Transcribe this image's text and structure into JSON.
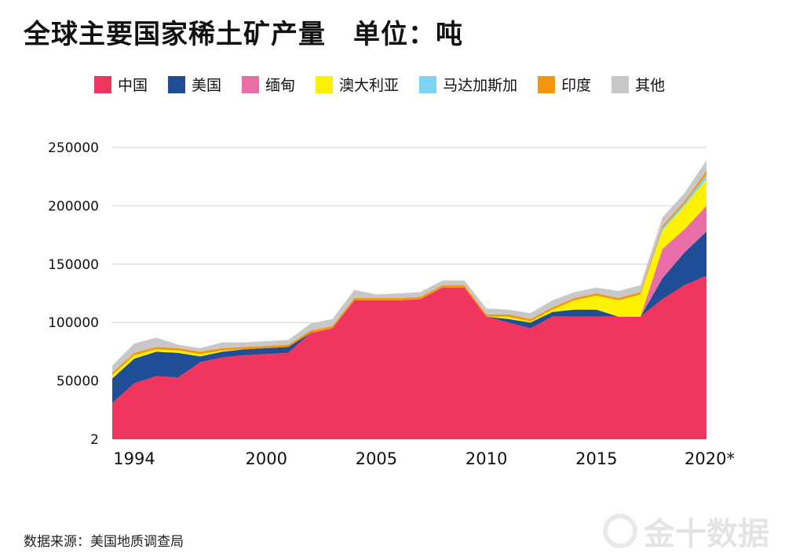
{
  "title": "全球主要国家稀土矿产量　单位：吨",
  "source": "数据来源：美国地质调查局",
  "watermark": "金十数据",
  "chart_data": {
    "type": "area",
    "stacked": true,
    "title": "全球主要国家稀土矿产量　单位：吨",
    "xlabel": "",
    "ylabel": "",
    "x": [
      1993,
      1994,
      1995,
      1996,
      1997,
      1998,
      1999,
      2000,
      2001,
      2002,
      2003,
      2004,
      2005,
      2006,
      2007,
      2008,
      2009,
      2010,
      2011,
      2012,
      2013,
      2014,
      2015,
      2016,
      2017,
      2018,
      2019,
      2020
    ],
    "x_tick_labels": [
      {
        "x": 1994,
        "label": "1994"
      },
      {
        "x": 2000,
        "label": "2000"
      },
      {
        "x": 2005,
        "label": "2005"
      },
      {
        "x": 2010,
        "label": "2010"
      },
      {
        "x": 2015,
        "label": "2015"
      },
      {
        "x": 2020,
        "label": "2020*"
      }
    ],
    "y_tick_labels": [
      {
        "y": 2,
        "label": "2"
      },
      {
        "y": 50000,
        "label": "50000"
      },
      {
        "y": 100000,
        "label": "100000"
      },
      {
        "y": 150000,
        "label": "150000"
      },
      {
        "y": 200000,
        "label": "200000"
      },
      {
        "y": 250000,
        "label": "250000"
      }
    ],
    "ylim": [
      2,
      250000
    ],
    "grid": true,
    "legend_position": "top",
    "series": [
      {
        "name": "中国",
        "color": "#f0365f",
        "values": [
          31000,
          48000,
          54000,
          53000,
          66000,
          70000,
          72000,
          73000,
          74000,
          91000,
          95000,
          119000,
          119000,
          119000,
          120000,
          130000,
          130000,
          105000,
          100000,
          95000,
          105000,
          105000,
          105000,
          105000,
          105000,
          120000,
          132000,
          140000
        ]
      },
      {
        "name": "美国",
        "color": "#1f4e97",
        "values": [
          21000,
          21000,
          21000,
          21000,
          5000,
          5000,
          5000,
          5000,
          5000,
          0,
          0,
          0,
          0,
          0,
          0,
          0,
          0,
          0,
          3000,
          5000,
          4000,
          6000,
          6000,
          0,
          0,
          18000,
          28000,
          38000
        ]
      },
      {
        "name": "缅甸",
        "color": "#e96ea7",
        "values": [
          0,
          0,
          0,
          0,
          0,
          0,
          0,
          0,
          0,
          0,
          0,
          0,
          0,
          0,
          0,
          0,
          0,
          0,
          0,
          0,
          0,
          0,
          0,
          0,
          0,
          25000,
          20000,
          22000
        ]
      },
      {
        "name": "澳大利亚",
        "color": "#fff200",
        "values": [
          3000,
          3000,
          2000,
          2000,
          2000,
          1000,
          0,
          0,
          0,
          0,
          0,
          0,
          0,
          0,
          0,
          0,
          0,
          0,
          2000,
          1000,
          2000,
          8000,
          12000,
          14000,
          19000,
          16000,
          20000,
          23000
        ]
      },
      {
        "name": "马达加斯加",
        "color": "#7fd3f2",
        "values": [
          0,
          0,
          0,
          0,
          0,
          0,
          0,
          0,
          0,
          0,
          0,
          0,
          0,
          0,
          0,
          0,
          0,
          0,
          0,
          0,
          0,
          0,
          0,
          0,
          0,
          2000,
          2000,
          4000
        ]
      },
      {
        "name": "印度",
        "color": "#f3960e",
        "values": [
          2000,
          2000,
          2000,
          2000,
          2000,
          2000,
          2000,
          2000,
          2000,
          2000,
          2000,
          2000,
          2000,
          2000,
          2000,
          2000,
          2000,
          2000,
          2000,
          2000,
          2000,
          2000,
          2000,
          2000,
          2000,
          2000,
          2000,
          3000
        ]
      },
      {
        "name": "其他",
        "color": "#c8c8c8",
        "values": [
          6000,
          8000,
          8000,
          3000,
          3000,
          5000,
          4000,
          4000,
          4000,
          6000,
          6000,
          7000,
          3000,
          4000,
          4000,
          4000,
          4000,
          5000,
          4000,
          5000,
          6000,
          5000,
          5000,
          6000,
          6000,
          7000,
          7000,
          9000
        ]
      }
    ]
  }
}
